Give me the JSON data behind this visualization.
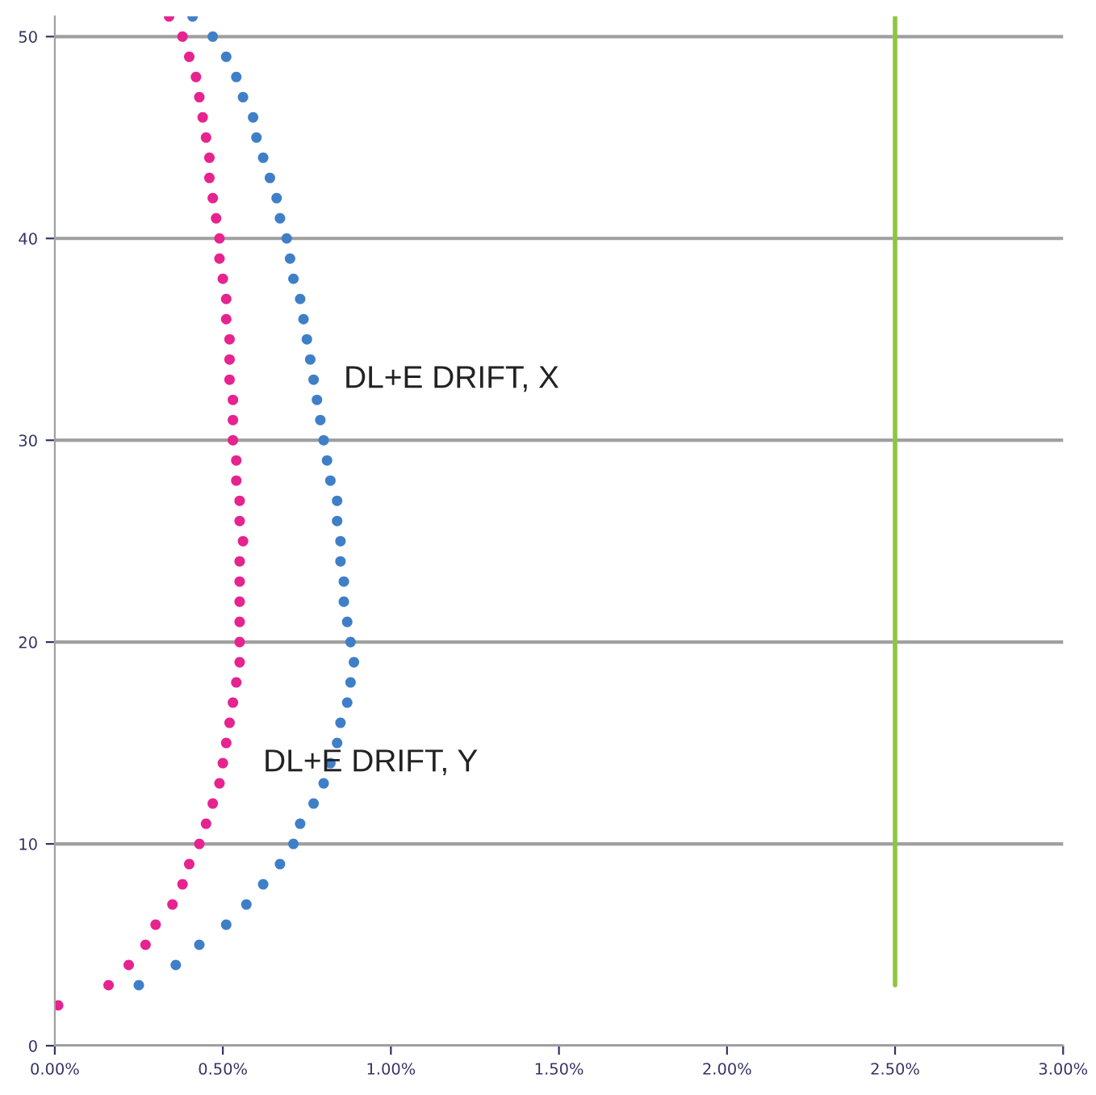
{
  "chart_data": {
    "type": "scatter",
    "xlim": [
      0,
      3
    ],
    "ylim": [
      0,
      51
    ],
    "xticks": [
      {
        "value": 0,
        "label": "0.00%"
      },
      {
        "value": 0.5,
        "label": "0.50%"
      },
      {
        "value": 1,
        "label": "1.00%"
      },
      {
        "value": 1.5,
        "label": "1.50%"
      },
      {
        "value": 2,
        "label": "2.00%"
      },
      {
        "value": 2.5,
        "label": "2.50%"
      },
      {
        "value": 3,
        "label": "3.00%"
      }
    ],
    "yticks": [
      0,
      10,
      20,
      30,
      40,
      50
    ],
    "grid": "y",
    "marker": "circle",
    "series": [
      {
        "name": "DL+E DRIFT, X",
        "color": "#3f7fc8",
        "x": [
          0.25,
          0.36,
          0.43,
          0.51,
          0.57,
          0.62,
          0.67,
          0.71,
          0.73,
          0.77,
          0.8,
          0.82,
          0.84,
          0.85,
          0.87,
          0.88,
          0.89,
          0.88,
          0.87,
          0.86,
          0.86,
          0.85,
          0.85,
          0.84,
          0.84,
          0.82,
          0.81,
          0.8,
          0.79,
          0.78,
          0.77,
          0.76,
          0.75,
          0.74,
          0.73,
          0.71,
          0.7,
          0.69,
          0.67,
          0.66,
          0.64,
          0.62,
          0.6,
          0.59,
          0.56,
          0.54,
          0.51,
          0.47,
          0.41
        ],
        "values": [
          3,
          4,
          5,
          6,
          7,
          8,
          9,
          10,
          11,
          12,
          13,
          14,
          15,
          16,
          17,
          18,
          19,
          20,
          21,
          22,
          23,
          24,
          25,
          26,
          27,
          28,
          29,
          30,
          31,
          32,
          33,
          34,
          35,
          36,
          37,
          38,
          39,
          40,
          41,
          42,
          43,
          44,
          45,
          46,
          47,
          48,
          49,
          50,
          51
        ]
      },
      {
        "name": "DL+E DRIFT, Y",
        "color": "#e6238f",
        "x": [
          0.01,
          0.16,
          0.22,
          0.27,
          0.3,
          0.35,
          0.38,
          0.4,
          0.43,
          0.45,
          0.47,
          0.49,
          0.5,
          0.51,
          0.52,
          0.53,
          0.54,
          0.55,
          0.55,
          0.55,
          0.55,
          0.55,
          0.55,
          0.56,
          0.55,
          0.55,
          0.54,
          0.54,
          0.53,
          0.53,
          0.53,
          0.52,
          0.52,
          0.52,
          0.51,
          0.51,
          0.5,
          0.49,
          0.49,
          0.48,
          0.47,
          0.46,
          0.46,
          0.45,
          0.44,
          0.43,
          0.42,
          0.4,
          0.38,
          0.34
        ],
        "values": [
          2,
          3,
          4,
          5,
          6,
          7,
          8,
          9,
          10,
          11,
          12,
          13,
          14,
          15,
          16,
          17,
          18,
          19,
          20,
          21,
          22,
          23,
          24,
          25,
          26,
          27,
          28,
          29,
          30,
          31,
          32,
          33,
          34,
          35,
          36,
          37,
          38,
          39,
          40,
          41,
          42,
          43,
          44,
          45,
          46,
          47,
          48,
          49,
          50,
          51
        ]
      },
      {
        "type": "line",
        "marker": "none",
        "color": "#8dc63f",
        "x": [
          2.5,
          2.5
        ],
        "values": [
          3,
          51
        ]
      }
    ]
  }
}
